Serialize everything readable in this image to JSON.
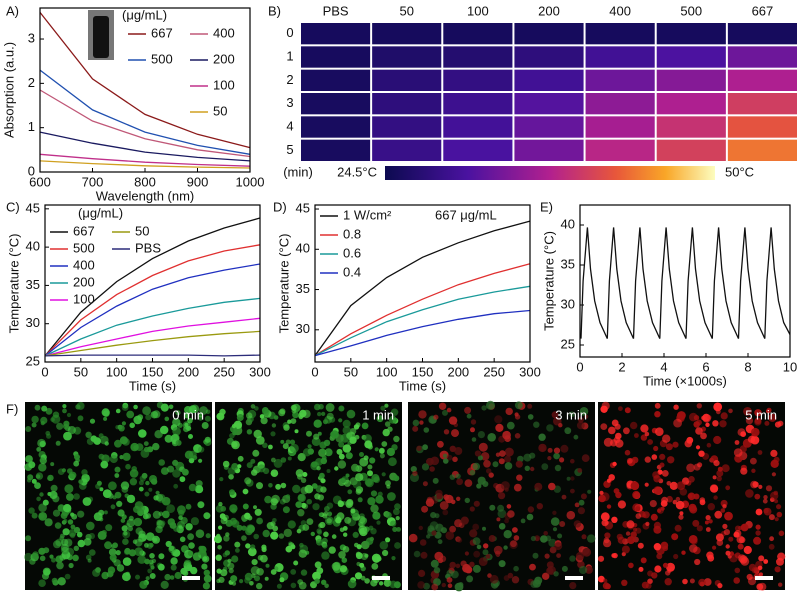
{
  "chart_data": [
    {
      "type": "line",
      "panel": "A)",
      "x_label": "Wavelength (nm)",
      "y_label": "Absorption (a.u.)",
      "legend_title": "(μg/mL)",
      "x": [
        600,
        700,
        800,
        900,
        1000
      ],
      "xlim": [
        600,
        1000
      ],
      "xticks": [
        600,
        700,
        800,
        900,
        1000
      ],
      "ylim": [
        0,
        3.7
      ],
      "yticks": [
        0,
        1,
        2,
        3
      ],
      "series": [
        {
          "name": "667",
          "color": "#8b1a1a",
          "values": [
            3.6,
            2.1,
            1.3,
            0.85,
            0.55
          ]
        },
        {
          "name": "500",
          "color": "#2050b0",
          "values": [
            2.3,
            1.4,
            0.9,
            0.6,
            0.4
          ]
        },
        {
          "name": "400",
          "color": "#c05878",
          "values": [
            1.85,
            1.15,
            0.75,
            0.5,
            0.35
          ]
        },
        {
          "name": "200",
          "color": "#1a1a60",
          "values": [
            0.9,
            0.65,
            0.45,
            0.33,
            0.25
          ]
        },
        {
          "name": "100",
          "color": "#c0308a",
          "values": [
            0.4,
            0.3,
            0.22,
            0.17,
            0.13
          ]
        },
        {
          "name": "50",
          "color": "#d0a020",
          "values": [
            0.25,
            0.19,
            0.14,
            0.11,
            0.09
          ]
        }
      ]
    },
    {
      "type": "heatmap",
      "panel": "B)",
      "y_label": "(min)",
      "x": [
        "PBS",
        "50",
        "100",
        "200",
        "400",
        "500",
        "667"
      ],
      "y": [
        "0",
        "1",
        "2",
        "3",
        "4",
        "5"
      ],
      "zlim": [
        24.5,
        50
      ],
      "zticks": [
        {
          "value": 24.5,
          "label": "24.5°C"
        },
        {
          "value": 50,
          "label": "50°C"
        }
      ],
      "values": [
        [
          25.5,
          25.5,
          25.5,
          25.5,
          25.5,
          25.5,
          25.5
        ],
        [
          25.6,
          26.5,
          27,
          28,
          30,
          31,
          33
        ],
        [
          25.7,
          27.5,
          28.5,
          30,
          33,
          34.5,
          37
        ],
        [
          25.7,
          28,
          29.5,
          31.5,
          35,
          37,
          40
        ],
        [
          25.7,
          28.5,
          30.2,
          32.5,
          36.5,
          39,
          42
        ],
        [
          25.7,
          29,
          30.8,
          33.3,
          37.8,
          40.3,
          43.8
        ]
      ]
    },
    {
      "type": "line",
      "panel": "C)",
      "x_label": "Time (s)",
      "y_label": "Temperature (°C)",
      "legend_title": "(μg/mL)",
      "x": [
        0,
        50,
        100,
        150,
        200,
        250,
        300
      ],
      "xlim": [
        0,
        300
      ],
      "xticks": [
        0,
        50,
        100,
        150,
        200,
        250,
        300
      ],
      "ylim": [
        25,
        45.5
      ],
      "yticks": [
        25,
        30,
        35,
        40,
        45
      ],
      "series": [
        {
          "name": "667",
          "color": "#111111",
          "values": [
            25.8,
            31.5,
            35.5,
            38.5,
            40.8,
            42.5,
            43.8
          ]
        },
        {
          "name": "500",
          "color": "#e03030",
          "values": [
            25.8,
            30.5,
            33.8,
            36.3,
            38.2,
            39.5,
            40.3
          ]
        },
        {
          "name": "400",
          "color": "#2030c0",
          "values": [
            25.8,
            29.5,
            32.3,
            34.5,
            36,
            37,
            37.8
          ]
        },
        {
          "name": "200",
          "color": "#1a9a9a",
          "values": [
            25.8,
            28,
            29.8,
            31,
            32,
            32.8,
            33.3
          ]
        },
        {
          "name": "100",
          "color": "#e010e0",
          "values": [
            25.8,
            27,
            28,
            29,
            29.7,
            30.2,
            30.7
          ]
        },
        {
          "name": "50",
          "color": "#9a9a10",
          "values": [
            25.8,
            26.5,
            27.2,
            27.8,
            28.3,
            28.7,
            29
          ]
        },
        {
          "name": "PBS",
          "color": "#2c2c7a",
          "values": [
            25.8,
            25.9,
            25.9,
            25.9,
            25.9,
            25.8,
            25.9
          ]
        }
      ]
    },
    {
      "type": "line",
      "panel": "D)",
      "x_label": "Time (s)",
      "y_label": "Temperature (°C)",
      "annotation": "667 μg/mL",
      "x": [
        0,
        50,
        100,
        150,
        200,
        250,
        300
      ],
      "xlim": [
        0,
        300
      ],
      "xticks": [
        0,
        50,
        100,
        150,
        200,
        250,
        300
      ],
      "ylim": [
        26,
        45.5
      ],
      "yticks": [
        30,
        35,
        40,
        45
      ],
      "series": [
        {
          "name": "1 W/cm²",
          "color": "#111111",
          "values": [
            26.8,
            33,
            36.5,
            39,
            40.8,
            42.3,
            43.5
          ]
        },
        {
          "name": "0.8",
          "color": "#e03030",
          "values": [
            26.8,
            29.5,
            31.8,
            33.8,
            35.6,
            37,
            38.2
          ]
        },
        {
          "name": "0.6",
          "color": "#1a9a9a",
          "values": [
            26.8,
            29,
            31,
            32.5,
            33.8,
            34.7,
            35.4
          ]
        },
        {
          "name": "0.4",
          "color": "#2030c0",
          "values": [
            26.8,
            28,
            29.3,
            30.4,
            31.3,
            32,
            32.4
          ]
        }
      ]
    },
    {
      "type": "line",
      "panel": "E)",
      "x_label": "Time (×1000s)",
      "y_label": "Temperature (°C)",
      "x": [
        0.05,
        0.15,
        0.35,
        0.5,
        0.7,
        0.95,
        1.3,
        1.4,
        1.6,
        1.75,
        1.95,
        2.2,
        2.55,
        2.65,
        2.85,
        3.0,
        3.2,
        3.45,
        3.8,
        3.9,
        4.1,
        4.25,
        4.45,
        4.7,
        5.05,
        5.15,
        5.35,
        5.5,
        5.7,
        5.95,
        6.3,
        6.4,
        6.6,
        6.75,
        6.95,
        7.2,
        7.55,
        7.65,
        7.85,
        8.0,
        8.2,
        8.45,
        8.8,
        8.9,
        9.1,
        9.25,
        9.45,
        9.7,
        10
      ],
      "xlim": [
        0,
        10
      ],
      "xticks": [
        0,
        2,
        4,
        6,
        8,
        10
      ],
      "ylim": [
        23.5,
        42.5
      ],
      "yticks": [
        25,
        30,
        35,
        40
      ],
      "series": [
        {
          "color": "#111111",
          "values": [
            25.8,
            33,
            39.7,
            34.5,
            30.5,
            27.8,
            25.8,
            33,
            39.7,
            34.5,
            30.5,
            27.8,
            25.8,
            33,
            39.7,
            34.5,
            30.5,
            27.8,
            25.8,
            33,
            39.7,
            34.5,
            30.5,
            27.8,
            25.8,
            33,
            39.7,
            34.5,
            30.5,
            27.8,
            25.8,
            33,
            39.7,
            34.5,
            30.5,
            27.8,
            25.8,
            33,
            39.7,
            34.5,
            30.5,
            27.8,
            25.8,
            33,
            39.7,
            34.5,
            30.5,
            27.8,
            26.3
          ]
        }
      ]
    }
  ],
  "images": {
    "panel": "F)",
    "labels": [
      "0 min",
      "1 min",
      "3 min",
      "5 min"
    ]
  }
}
